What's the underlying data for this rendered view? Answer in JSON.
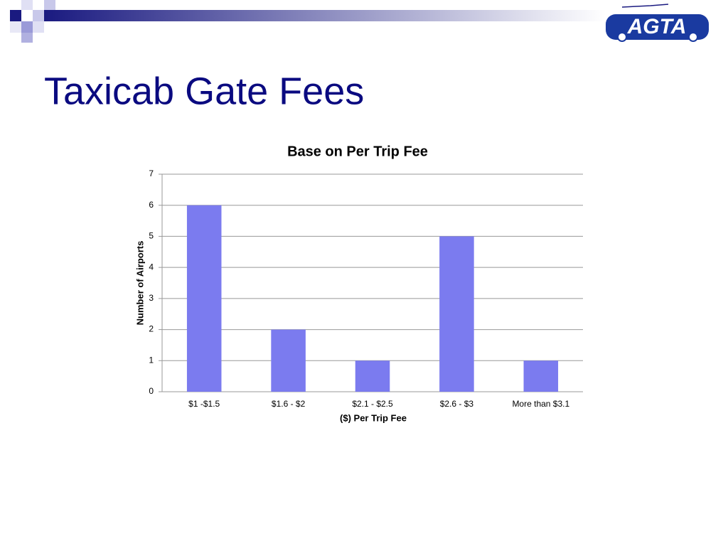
{
  "slide_title": "Taxicab Gate Fees",
  "logo_text": "AGTA",
  "chart_data": {
    "type": "bar",
    "title": "Base on Per Trip Fee",
    "x_label": "($) Per Trip Fee",
    "y_label": "Number of Airports",
    "categories": [
      "$1 -$1.5",
      "$1.6 - $2",
      "$2.1 - $2.5",
      "$2.6 - $3",
      "More than $3.1"
    ],
    "values": [
      6,
      2,
      1,
      5,
      1
    ],
    "color": "#7b7bef",
    "ylim": [
      0,
      7
    ],
    "yticks": [
      0,
      1,
      2,
      3,
      4,
      5,
      6,
      7
    ],
    "grid": true
  }
}
